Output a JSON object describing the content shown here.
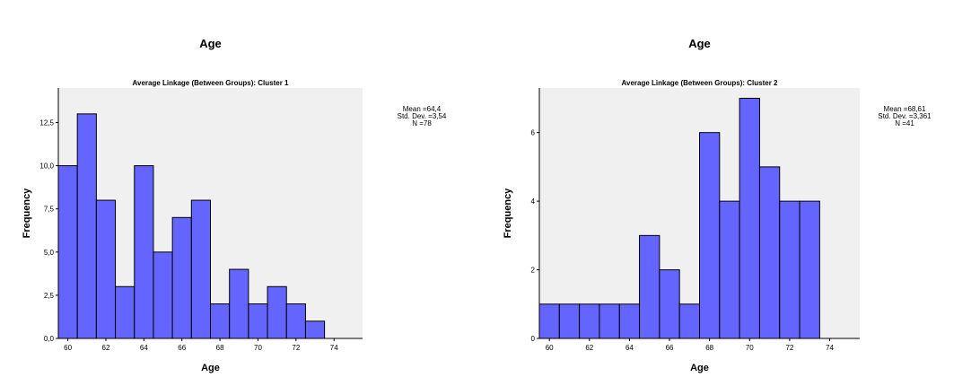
{
  "chart_data": [
    {
      "type": "bar",
      "title": "Age",
      "subtitle": "Average Linkage (Between Groups): Cluster 1",
      "xlabel": "Age",
      "ylabel": "Frequency",
      "xlim": [
        59.5,
        75.5
      ],
      "ylim": [
        0,
        14.5
      ],
      "x_ticks": [
        "60",
        "62",
        "64",
        "66",
        "68",
        "70",
        "72",
        "74"
      ],
      "y_ticks": [
        "0,0",
        "2,5",
        "5,0",
        "7,5",
        "10,0",
        "12,5"
      ],
      "bins": [
        60,
        61,
        62,
        63,
        64,
        65,
        66,
        67,
        68,
        69,
        70,
        71,
        72,
        73
      ],
      "values": [
        10,
        13,
        8,
        3,
        10,
        5,
        7,
        8,
        2,
        4,
        2,
        3,
        2,
        1
      ],
      "stats": [
        "Mean =64,4",
        "Std. Dev. =3,54",
        "N =78"
      ],
      "bar_color": "#6464ff",
      "plot_background": "#f0f0f0",
      "grid": false
    },
    {
      "type": "bar",
      "title": "Age",
      "subtitle": "Average Linkage (Between Groups): Cluster 2",
      "xlabel": "Age",
      "ylabel": "Frequency",
      "xlim": [
        59.5,
        75.5
      ],
      "ylim": [
        0,
        7.3
      ],
      "x_ticks": [
        "60",
        "62",
        "64",
        "66",
        "68",
        "70",
        "72",
        "74"
      ],
      "y_ticks": [
        "0",
        "2",
        "4",
        "6"
      ],
      "bins": [
        60,
        61,
        62,
        63,
        64,
        65,
        66,
        67,
        68,
        69,
        70,
        71,
        72,
        73
      ],
      "values": [
        1,
        1,
        1,
        1,
        1,
        3,
        2,
        1,
        6,
        4,
        7,
        5,
        4,
        4
      ],
      "stats": [
        "Mean =68,61",
        "Std. Dev. =3,361",
        "N =41"
      ],
      "bar_color": "#6464ff",
      "plot_background": "#f0f0f0",
      "grid": false
    }
  ]
}
